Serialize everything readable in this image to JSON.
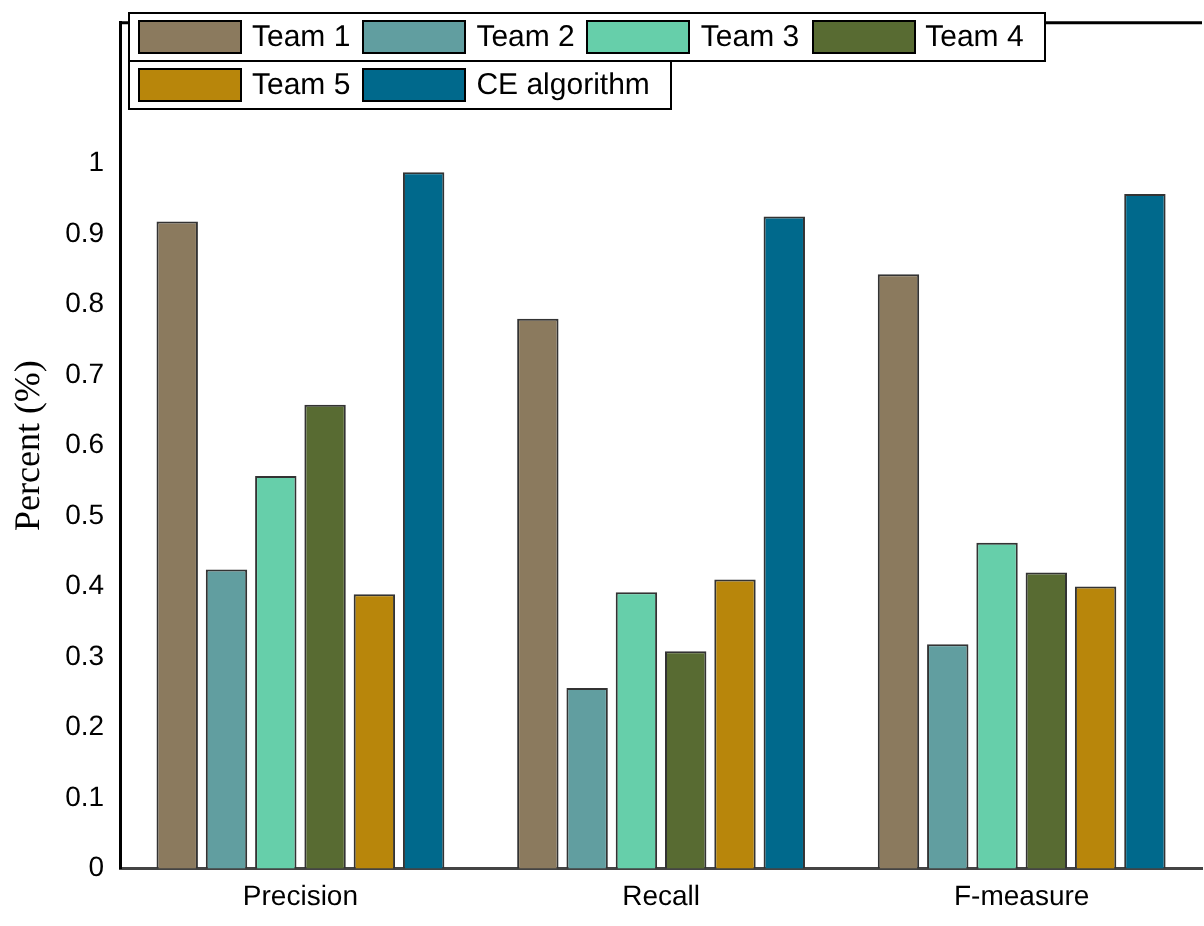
{
  "chart_data": {
    "type": "bar",
    "ylabel": "Percent (%)",
    "categories": [
      "Precision",
      "Recall",
      "F-measure"
    ],
    "series": [
      {
        "name": "Team 1",
        "color": "#8b7a5e",
        "values": [
          0.918,
          0.78,
          0.843
        ]
      },
      {
        "name": "Team 2",
        "color": "#619ea0",
        "values": [
          0.424,
          0.256,
          0.318
        ]
      },
      {
        "name": "Team 3",
        "color": "#66cfaa",
        "values": [
          0.557,
          0.392,
          0.462
        ]
      },
      {
        "name": "Team 4",
        "color": "#586b32",
        "values": [
          0.658,
          0.308,
          0.42
        ]
      },
      {
        "name": "Team 5",
        "color": "#b8860b",
        "values": [
          0.389,
          0.41,
          0.4
        ]
      },
      {
        "name": "CE algorithm",
        "color": "#00698c",
        "values": [
          0.988,
          0.925,
          0.957
        ]
      }
    ],
    "ylim": [
      0,
      1.2
    ],
    "yticks": [
      0,
      0.1,
      0.2,
      0.3,
      0.4,
      0.5,
      0.6,
      0.7,
      0.8,
      0.9,
      1
    ],
    "grid": false,
    "legend": "top left"
  }
}
